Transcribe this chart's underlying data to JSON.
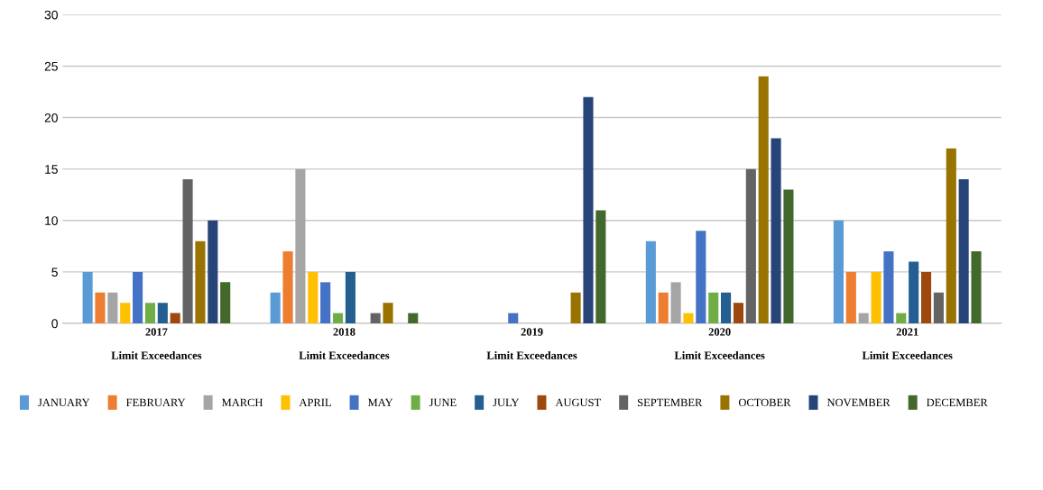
{
  "chart_data": {
    "type": "bar",
    "categories": [
      "2017\n\nLimit Exceedances",
      "2018\n\nLimit Exceedances",
      "2019\n\nLimit Exceedances",
      "2020\n\nLimit Exceedances",
      "2021\n\nLimit Exceedances"
    ],
    "series": [
      {
        "name": "JANUARY",
        "color": "#5b9bd5",
        "values": [
          5,
          3,
          0,
          8,
          10
        ]
      },
      {
        "name": "FEBRUARY",
        "color": "#ed7d31",
        "values": [
          3,
          7,
          0,
          3,
          5
        ]
      },
      {
        "name": "MARCH",
        "color": "#a5a5a5",
        "values": [
          3,
          15,
          0,
          4,
          1
        ]
      },
      {
        "name": "APRIL",
        "color": "#ffc000",
        "values": [
          2,
          5,
          0,
          1,
          5
        ]
      },
      {
        "name": "MAY",
        "color": "#4472c4",
        "values": [
          5,
          4,
          1,
          9,
          7
        ]
      },
      {
        "name": "JUNE",
        "color": "#70ad47",
        "values": [
          2,
          1,
          0,
          3,
          1
        ]
      },
      {
        "name": "JULY",
        "color": "#255e91",
        "values": [
          2,
          5,
          0,
          3,
          6
        ]
      },
      {
        "name": "AUGUST",
        "color": "#9e480e",
        "values": [
          1,
          0,
          0,
          2,
          5
        ]
      },
      {
        "name": "SEPTEMBER",
        "color": "#636363",
        "values": [
          14,
          1,
          0,
          15,
          3
        ]
      },
      {
        "name": "OCTOBER",
        "color": "#997300",
        "values": [
          8,
          2,
          3,
          24,
          17
        ]
      },
      {
        "name": "NOVEMBER",
        "color": "#264478",
        "values": [
          10,
          0,
          22,
          18,
          14
        ]
      },
      {
        "name": "DECEMBER",
        "color": "#43682b",
        "values": [
          4,
          1,
          11,
          13,
          7
        ]
      }
    ],
    "ylim": [
      0,
      30
    ],
    "yticks": [
      0,
      5,
      10,
      15,
      20,
      25,
      30
    ],
    "grid": "y",
    "legend": "bottom"
  }
}
